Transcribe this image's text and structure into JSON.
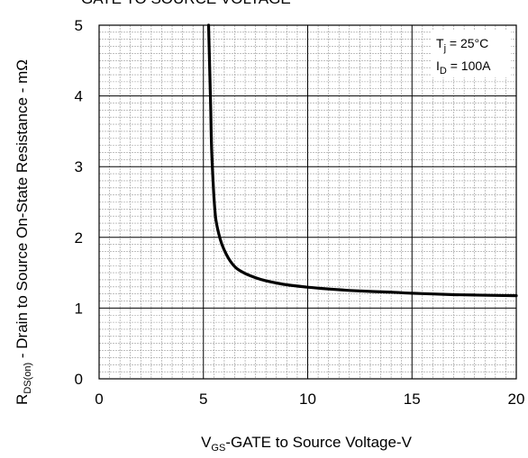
{
  "chart_data": {
    "type": "line",
    "title": "GATE TO SOURCE VOLTAGE",
    "xlabel": {
      "main": "V",
      "sub": "GS",
      "rest": "-GATE to Source Voltage-V"
    },
    "ylabel": {
      "main": "R",
      "sub": "DS(on)",
      "rest": " - Drain to Source On-State Resistance - mΩ"
    },
    "xlim": [
      0,
      20
    ],
    "ylim": [
      0,
      5
    ],
    "x_ticks": [
      "0",
      "5",
      "10",
      "15",
      "20"
    ],
    "y_ticks": [
      "0",
      "1",
      "2",
      "3",
      "4",
      "5"
    ],
    "x_minor_divisions": 10,
    "y_minor_divisions": 10,
    "grid": true,
    "annotations": [
      {
        "main": "T",
        "sub": "j",
        "rest": " = 25°C"
      },
      {
        "main": "I",
        "sub": "D",
        "rest": " = 100A"
      }
    ],
    "series": [
      {
        "x": [
          5.25,
          5.3,
          5.35,
          5.4,
          5.5,
          5.6,
          5.8,
          6.0,
          6.3,
          6.6,
          7.0,
          7.5,
          8.0,
          8.5,
          9.0,
          10.0,
          11.0,
          12.0,
          13.0,
          14.0,
          15.0,
          16.0,
          17.0,
          18.0,
          19.0,
          20.0
        ],
        "y": [
          5.0,
          4.4,
          3.8,
          3.2,
          2.6,
          2.25,
          1.98,
          1.82,
          1.66,
          1.56,
          1.49,
          1.43,
          1.385,
          1.355,
          1.33,
          1.295,
          1.27,
          1.25,
          1.235,
          1.225,
          1.21,
          1.2,
          1.19,
          1.185,
          1.18,
          1.175
        ]
      }
    ]
  }
}
